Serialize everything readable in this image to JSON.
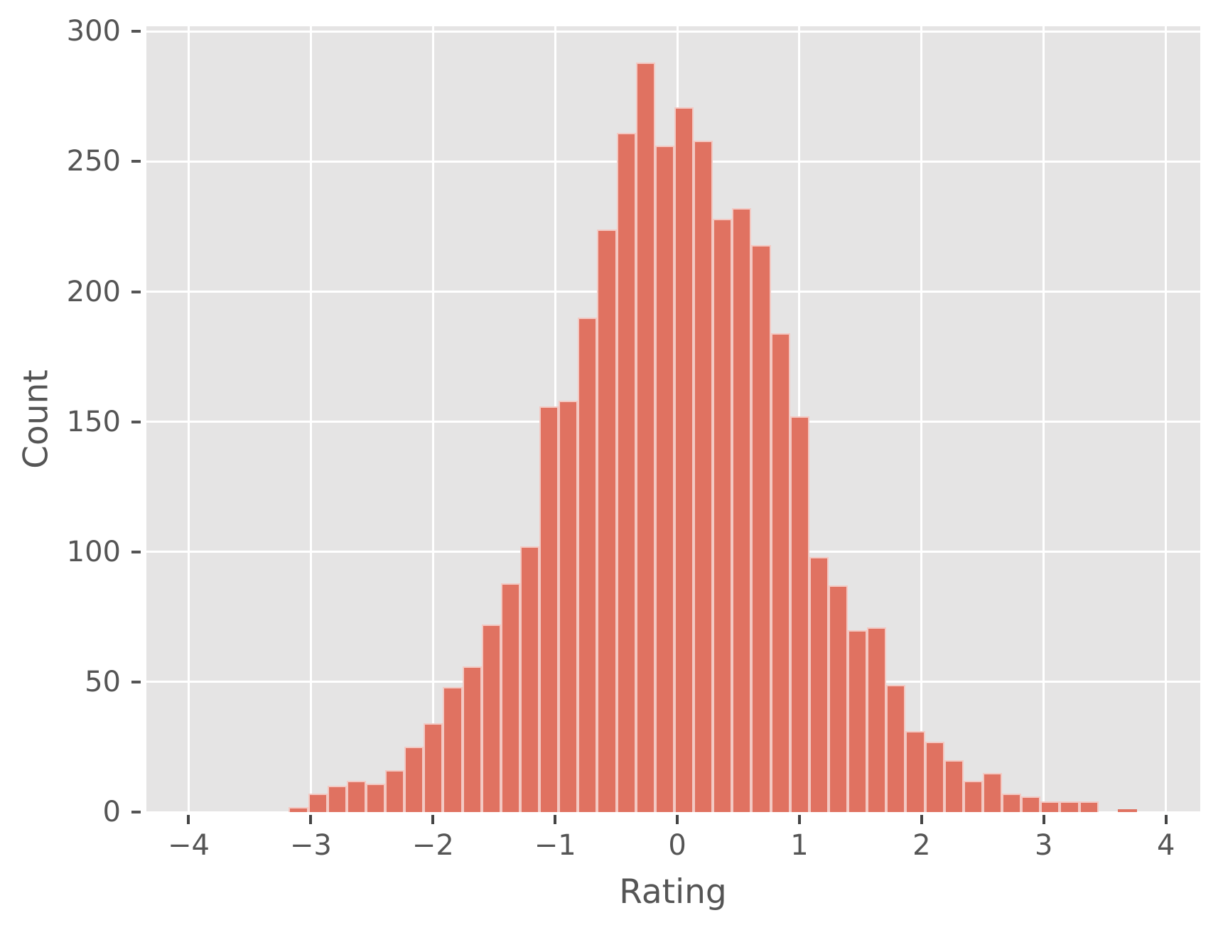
{
  "chart_data": {
    "type": "bar",
    "subtype": "histogram",
    "title": "",
    "xlabel": "Rating",
    "ylabel": "Count",
    "bin_start": -3.18,
    "bin_width": 0.1578,
    "counts": [
      2,
      7,
      10,
      12,
      11,
      16,
      25,
      34,
      48,
      56,
      72,
      88,
      102,
      156,
      158,
      190,
      224,
      261,
      288,
      256,
      271,
      258,
      228,
      232,
      218,
      184,
      152,
      98,
      87,
      70,
      71,
      49,
      31,
      27,
      20,
      12,
      15,
      7,
      6,
      4,
      4,
      4,
      0,
      1
    ],
    "xlim": [
      -4.346,
      4.281
    ],
    "ylim": [
      0,
      302
    ],
    "xtick_values": [
      -4,
      -3,
      -2,
      -1,
      0,
      1,
      2,
      3,
      4
    ],
    "xtick_labels": [
      "−4",
      "−3",
      "−2",
      "−1",
      "0",
      "1",
      "2",
      "3",
      "4"
    ],
    "ytick_values": [
      0,
      50,
      100,
      150,
      200,
      250,
      300
    ],
    "ytick_labels": [
      "0",
      "50",
      "100",
      "150",
      "200",
      "250",
      "300"
    ],
    "grid": true,
    "legend": false,
    "colors": {
      "bar_fill": "#e07261",
      "bar_edge": "rgba(255,255,255,0.62)",
      "plot_bg": "#e5e4e4",
      "gridline": "#ffffff",
      "tick_label": "#555555",
      "axis_label": "#555555",
      "xtick_mark": "#444444",
      "ytick_mark": "#555555"
    }
  }
}
